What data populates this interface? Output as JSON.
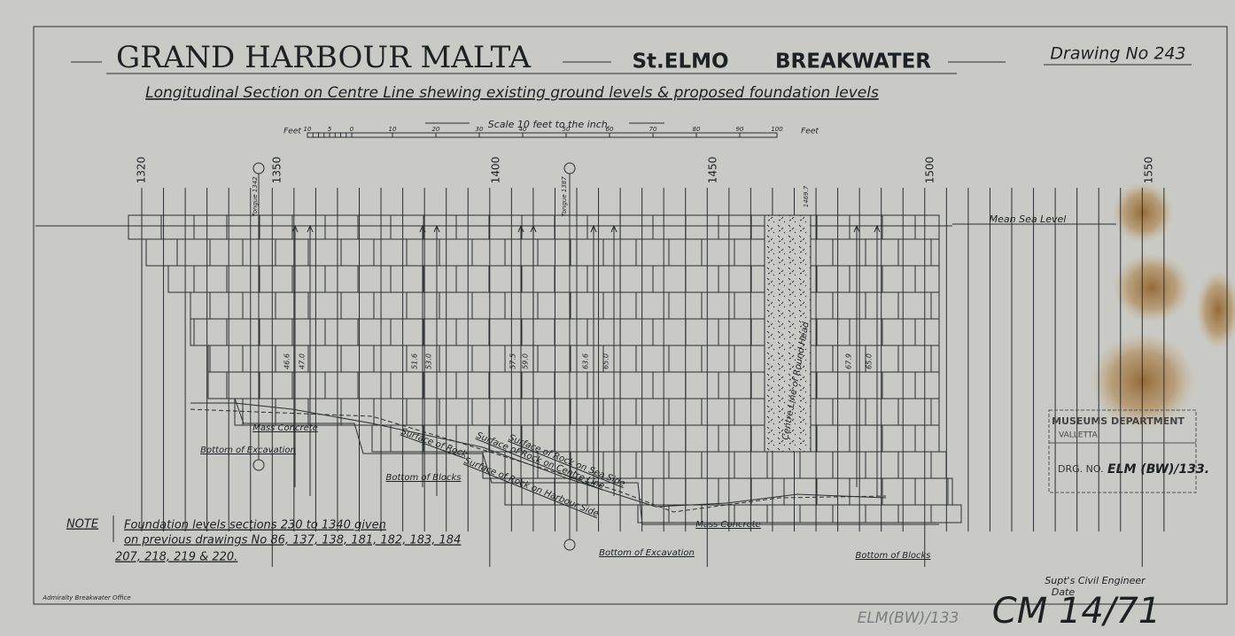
{
  "header": {
    "title": "GRAND HARBOUR MALTA",
    "location": "St.ELMO",
    "structure": "BREAKWATER",
    "drawing_number": "Drawing No 243",
    "description": "Longitudinal Section on Centre Line shewing existing ground levels & proposed foundation levels"
  },
  "scale": {
    "title": "Scale 10 feet to the inch.",
    "unit_left": "Feet",
    "unit_right": "Feet",
    "labels": [
      "10",
      "5",
      "0",
      "10",
      "20",
      "30",
      "40",
      "50",
      "60",
      "70",
      "80",
      "90",
      "100"
    ]
  },
  "section": {
    "stations": [
      "1320",
      "1350",
      "1400",
      "1450",
      "1500",
      "1550"
    ],
    "sea_level": "Mean Sea Level",
    "labels": [
      "Mass Concrete",
      "Bottom of Excavation",
      "Bottom of Blocks",
      "Surface of Rock",
      "Surface of Rock on Harbour Side",
      "Surface of Rock on Centre Line",
      "Surface of Rock on Sea Side",
      "Mass Concrete",
      "Bottom of Excavation",
      "Bottom of Blocks",
      "Centre Line of Round Head",
      "Tongue 1342",
      "Tongue 1387",
      "1469.7"
    ],
    "levels": [
      "46.6",
      "47.0",
      "51.6",
      "53.0",
      "57.5",
      "59.0",
      "63.6",
      "65.0",
      "67.9",
      "65.0"
    ]
  },
  "note": {
    "heading": "NOTE",
    "lines": [
      "Foundation levels sections 230 to 1340 given",
      "on previous drawings No 86, 137, 138, 181, 182, 183, 184",
      "207, 218, 219 & 220."
    ]
  },
  "footer": {
    "signature": "Supt's Civil Engineer",
    "date": "Date",
    "office": "Admiralty Breakwater Office",
    "archive_ref": "ELM(BW)/133",
    "catalogue": "CM 14/71"
  },
  "stamp": {
    "line1": "MUSEUMS DEPARTMENT",
    "line2": "VALLETTA",
    "ref_label": "DRG. NO.",
    "ref": "ELM (BW)/133."
  }
}
